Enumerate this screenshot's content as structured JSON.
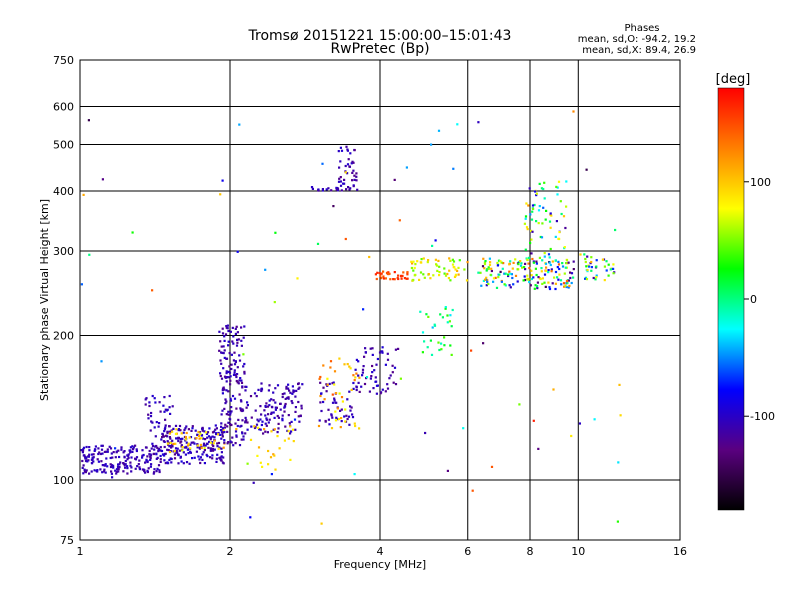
{
  "chart_data": {
    "type": "scatter",
    "title": "Tromsø 20151221 15:00:00–15:01:43",
    "subtitle": "RwPretec (Bp)",
    "xlabel": "Frequency [MHz]",
    "ylabel": "Stationary phase Virtual Height [km]",
    "x_scale": "log",
    "y_scale": "log",
    "xlim": [
      1,
      16
    ],
    "ylim": [
      75,
      750
    ],
    "x_ticks": [
      1,
      2,
      4,
      6,
      8,
      10,
      16
    ],
    "y_ticks": [
      75,
      100,
      200,
      300,
      400,
      500,
      600,
      750
    ],
    "x_gridlines": [
      2,
      4,
      6,
      8,
      10
    ],
    "y_gridlines": [
      100,
      200,
      300,
      400,
      500,
      600
    ],
    "grid": true,
    "phases_box": {
      "title": "Phases",
      "o_line": "mean, sd,O: -94.2, 19.2",
      "x_line": "mean, sd,X:  89.4, 26.9"
    },
    "colorbar": {
      "label": "[deg]",
      "range": [
        -180,
        180
      ],
      "ticks": [
        -100,
        0,
        100
      ],
      "colors": [
        "#000000",
        "#5a0080",
        "#0000ff",
        "#00ffff",
        "#00ff00",
        "#ffff00",
        "#ff8000",
        "#ff0000"
      ]
    },
    "clusters": [
      {
        "f": [
          1.0,
          1.45
        ],
        "h": [
          103,
          118
        ],
        "phase": [
          -120,
          -95
        ],
        "n": 200
      },
      {
        "f": [
          1.45,
          1.95
        ],
        "h": [
          108,
          130
        ],
        "phase": [
          -125,
          -90
        ],
        "n": 220
      },
      {
        "f": [
          1.35,
          1.55
        ],
        "h": [
          115,
          150
        ],
        "phase": [
          -120,
          -95
        ],
        "n": 40
      },
      {
        "f": [
          1.5,
          1.95
        ],
        "h": [
          115,
          128
        ],
        "phase": [
          70,
          125
        ],
        "n": 40
      },
      {
        "f": [
          1.9,
          2.15
        ],
        "h": [
          118,
          210
        ],
        "phase": [
          -125,
          -95
        ],
        "n": 160
      },
      {
        "f": [
          2.1,
          2.8
        ],
        "h": [
          125,
          160
        ],
        "phase": [
          -125,
          -95
        ],
        "n": 140
      },
      {
        "f": [
          2.2,
          2.7
        ],
        "h": [
          105,
          130
        ],
        "phase": [
          75,
          120
        ],
        "n": 25
      },
      {
        "f": [
          3.0,
          3.6
        ],
        "h": [
          130,
          160
        ],
        "phase": [
          -125,
          -95
        ],
        "n": 50
      },
      {
        "f": [
          3.0,
          3.7
        ],
        "h": [
          128,
          180
        ],
        "phase": [
          70,
          150
        ],
        "n": 40
      },
      {
        "f": [
          3.55,
          4.4
        ],
        "h": [
          150,
          190
        ],
        "phase": [
          -125,
          -90
        ],
        "n": 60
      },
      {
        "f": [
          3.3,
          3.6
        ],
        "h": [
          400,
          495
        ],
        "phase": [
          -125,
          -95
        ],
        "n": 45
      },
      {
        "f": [
          2.85,
          3.3
        ],
        "h": [
          400,
          408
        ],
        "phase": [
          -125,
          -95
        ],
        "n": 15
      },
      {
        "f": [
          3.9,
          4.6
        ],
        "h": [
          262,
          272
        ],
        "phase": [
          140,
          170
        ],
        "n": 35
      },
      {
        "f": [
          4.6,
          6.0
        ],
        "h": [
          260,
          290
        ],
        "phase": [
          40,
          120
        ],
        "n": 60
      },
      {
        "f": [
          4.8,
          5.6
        ],
        "h": [
          180,
          230
        ],
        "phase": [
          -40,
          50
        ],
        "n": 30
      },
      {
        "f": [
          6.3,
          9.8
        ],
        "h": [
          250,
          290
        ],
        "phase": [
          -150,
          150
        ],
        "n": 180
      },
      {
        "f": [
          7.8,
          9.5
        ],
        "h": [
          290,
          420
        ],
        "phase": [
          -120,
          120
        ],
        "n": 70
      },
      {
        "f": [
          10.2,
          11.8
        ],
        "h": [
          260,
          300
        ],
        "phase": [
          -120,
          120
        ],
        "n": 40
      },
      {
        "f": [
          1.0,
          12.5
        ],
        "h": [
          80,
          600
        ],
        "phase": [
          -150,
          170
        ],
        "n": 70
      }
    ]
  }
}
